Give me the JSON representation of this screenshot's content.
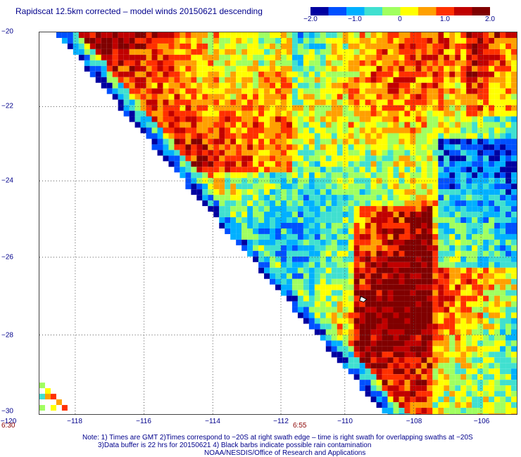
{
  "title": "Rapidscat 12.5km corrected – model winds 20150621 descending",
  "colorbar": {
    "labels": [
      "−2.0",
      "−1.0",
      "0",
      "1.0",
      "2.0"
    ],
    "range": [
      -2.0,
      2.0
    ],
    "colors": [
      "#0000a0",
      "#0050ff",
      "#00b0ff",
      "#40e0d0",
      "#a0ff60",
      "#ffff00",
      "#ffa000",
      "#ff3000",
      "#c00000",
      "#800000"
    ]
  },
  "axes": {
    "lat_labels": [
      "−20",
      "−22",
      "−24",
      "−26",
      "−28",
      "−30"
    ],
    "lon_labels": [
      "−120",
      "−118",
      "−116",
      "−114",
      "−112",
      "−110",
      "−108",
      "−106"
    ],
    "lat_range": [
      -30,
      -20
    ],
    "lon_range": [
      -120,
      -105.2
    ]
  },
  "times": {
    "left": "6:30",
    "mid": "6:55"
  },
  "notes": {
    "line1": "Note: 1) Times are GMT 2)Times correspond to −20S at right swath edge – time is right swath for overlapping swaths at −20S",
    "line2": "3)Data buffer is 22 hrs for 20150621 4) Black barbs indicate possible rain contamination",
    "line3": "NOAA/NESDIS/Office of Research and Applications"
  }
}
